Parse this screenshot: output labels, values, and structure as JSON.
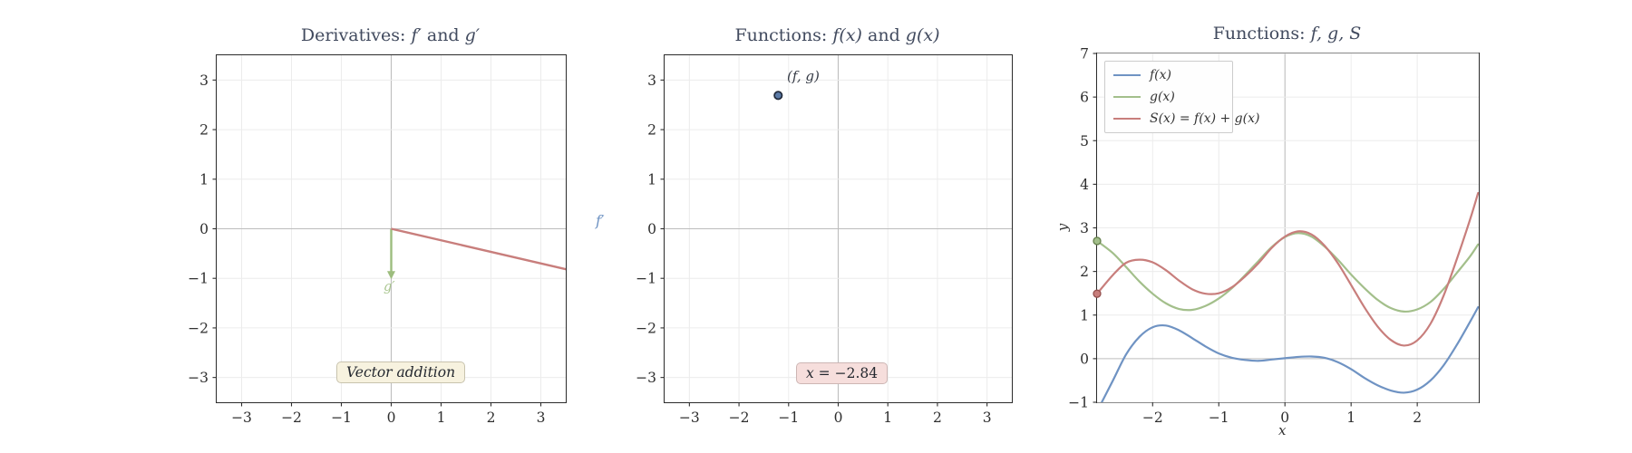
{
  "titles": {
    "derivatives": {
      "prefix": "Derivatives: ",
      "m1": "f′",
      "mid": " and ",
      "m2": "g′"
    },
    "phase": {
      "prefix": "Functions: ",
      "m1": "f(x)",
      "mid": " and ",
      "m2": "g(x)"
    },
    "functions": {
      "prefix": "Functions: ",
      "m1": "f, g, S"
    }
  },
  "labels": {
    "g_prime": "g′",
    "phase_ylabel": "f′",
    "point_label": "(f, g)",
    "vector_annotation": "Vector addition",
    "readout_var": "x",
    "readout_rest": " = −2.84",
    "fn_xlabel": "x",
    "fn_ylabel": "y"
  },
  "colors": {
    "f_blue": "#6f93c3",
    "g_green": "#a3bf8b",
    "s_red": "#c87e7c",
    "arrow_green": "#9dbd7e",
    "g_prime_label": "#aac690",
    "marker_fill": "#5b7aa6",
    "marker_edge": "#222b3c",
    "annotation_bg": "#f7f2df",
    "readout_bg": "#f6dedc"
  },
  "chart_data": [
    {
      "type": "vector",
      "title": "Derivatives: f′ and g′",
      "xlim": [
        -3.5,
        3.5
      ],
      "ylim": [
        -3.5,
        3.5
      ],
      "xticks": {
        "values": [
          -3,
          -2,
          -1,
          0,
          1,
          2,
          3
        ],
        "labels": [
          "−3",
          "−2",
          "−1",
          "0",
          "1",
          "2",
          "3"
        ]
      },
      "yticks": {
        "values": [
          -3,
          -2,
          -1,
          0,
          1,
          2,
          3
        ],
        "labels": [
          "−3",
          "−2",
          "−1",
          "0",
          "1",
          "2",
          "3"
        ]
      },
      "vectors": [
        {
          "name": "g-prime",
          "label": "g′",
          "from": [
            0,
            0
          ],
          "to": [
            0,
            -1.02
          ],
          "color": "#9dbd7e",
          "arrowhead": true
        },
        {
          "name": "sum-derivative",
          "from": [
            0,
            0
          ],
          "to": [
            4.38,
            -1.02
          ],
          "color": "#c87e7c",
          "arrowhead": false
        }
      ],
      "annotation": "Vector addition"
    },
    {
      "type": "scatter",
      "title": "Functions: f(x) and g(x)",
      "ylabel": "f′",
      "xlim": [
        -3.5,
        3.5
      ],
      "ylim": [
        -3.5,
        3.5
      ],
      "xticks": {
        "values": [
          -3,
          -2,
          -1,
          0,
          1,
          2,
          3
        ],
        "labels": [
          "−3",
          "−2",
          "−1",
          "0",
          "1",
          "2",
          "3"
        ]
      },
      "yticks": {
        "values": [
          -3,
          -2,
          -1,
          0,
          1,
          2,
          3
        ],
        "labels": [
          "−3",
          "−2",
          "−1",
          "0",
          "1",
          "2",
          "3"
        ]
      },
      "point": {
        "x": -1.21,
        "y": 2.69,
        "label": "(f, g)"
      },
      "readout": "x = −2.84"
    },
    {
      "type": "line",
      "title": "Functions: f, g, S",
      "xlabel": "x",
      "ylabel": "y",
      "xlim": [
        -2.84,
        2.93
      ],
      "ylim": [
        -1,
        7
      ],
      "xticks": {
        "values": [
          -2,
          -1,
          0,
          1,
          2
        ],
        "labels": [
          "−2",
          "−1",
          "0",
          "1",
          "2"
        ]
      },
      "yticks": {
        "values": [
          -1,
          0,
          1,
          2,
          3,
          4,
          5,
          6,
          7
        ],
        "labels": [
          "−1",
          "0",
          "1",
          "2",
          "3",
          "4",
          "5",
          "6",
          "7"
        ]
      },
      "x": [
        -2.84,
        -2.6,
        -2.4,
        -2.2,
        -2.0,
        -1.8,
        -1.6,
        -1.4,
        -1.2,
        -1.0,
        -0.8,
        -0.6,
        -0.4,
        -0.2,
        0.0,
        0.2,
        0.4,
        0.6,
        0.8,
        1.0,
        1.2,
        1.4,
        1.6,
        1.8,
        2.0,
        2.2,
        2.4,
        2.6,
        2.8,
        2.92
      ],
      "series": [
        {
          "label": "f(x)",
          "color": "#6f93c3",
          "values": [
            -1.21,
            -0.5,
            0.1,
            0.5,
            0.72,
            0.76,
            0.65,
            0.47,
            0.28,
            0.12,
            0.02,
            -0.03,
            -0.05,
            -0.02,
            0.01,
            0.04,
            0.05,
            0.02,
            -0.08,
            -0.24,
            -0.44,
            -0.61,
            -0.73,
            -0.78,
            -0.71,
            -0.5,
            -0.15,
            0.32,
            0.85,
            1.18
          ]
        },
        {
          "label": "g(x)",
          "color": "#a3bf8b",
          "values": [
            2.7,
            2.42,
            2.1,
            1.77,
            1.49,
            1.27,
            1.14,
            1.12,
            1.21,
            1.38,
            1.62,
            1.92,
            2.24,
            2.56,
            2.79,
            2.88,
            2.8,
            2.57,
            2.27,
            1.93,
            1.62,
            1.35,
            1.16,
            1.08,
            1.13,
            1.3,
            1.6,
            1.97,
            2.35,
            2.62
          ]
        },
        {
          "label": "S(x) = f(x) + g(x)",
          "color": "#c87e7c",
          "values": [
            1.49,
            1.92,
            2.2,
            2.27,
            2.21,
            2.03,
            1.79,
            1.59,
            1.49,
            1.5,
            1.64,
            1.89,
            2.19,
            2.54,
            2.8,
            2.92,
            2.85,
            2.59,
            2.19,
            1.69,
            1.18,
            0.74,
            0.43,
            0.3,
            0.42,
            0.8,
            1.45,
            2.29,
            3.2,
            3.8
          ]
        }
      ],
      "edge_markers": [
        {
          "x": -2.84,
          "y": 2.7,
          "color": "#a3bf8b",
          "edge": "#66804d"
        },
        {
          "x": -2.84,
          "y": 1.49,
          "color": "#c87e7c",
          "edge": "#94504e"
        }
      ]
    }
  ]
}
